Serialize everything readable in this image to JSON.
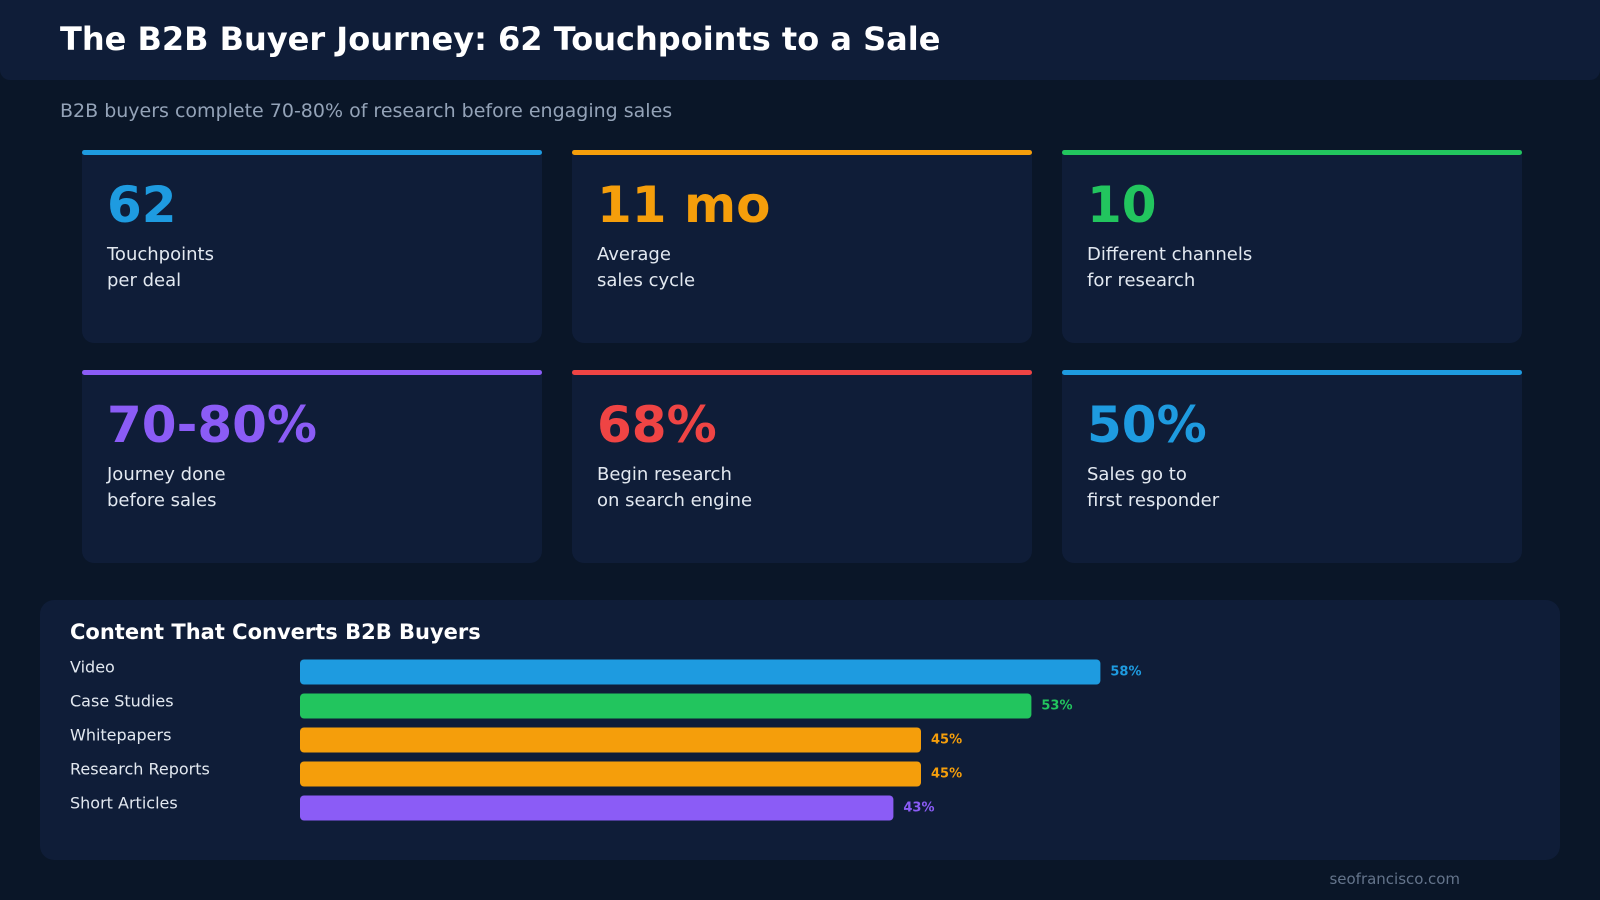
{
  "header": {
    "title": "The B2B Buyer Journey: 62 Touchpoints to a Sale",
    "subtitle": "B2B buyers complete 70-80% of research before engaging sales"
  },
  "stats": [
    {
      "value": "62",
      "label": [
        "Touchpoints",
        "per deal"
      ],
      "color": "#1e9be0"
    },
    {
      "value": "11 mo",
      "label": [
        "Average",
        "sales cycle"
      ],
      "color": "#f59e0b"
    },
    {
      "value": "10",
      "label": [
        "Different channels",
        "for research"
      ],
      "color": "#22c55e"
    },
    {
      "value": "70-80%",
      "label": [
        "Journey done",
        "before sales"
      ],
      "color": "#8b5cf6"
    },
    {
      "value": "68%",
      "label": [
        "Begin research",
        "on search engine"
      ],
      "color": "#ef4444"
    },
    {
      "value": "50%",
      "label": [
        "Sales go to",
        "first responder"
      ],
      "color": "#1e9be0"
    }
  ],
  "chart_data": {
    "type": "bar",
    "orientation": "horizontal",
    "title": "Content That Converts B2B Buyers",
    "categories": [
      "Video",
      "Case Studies",
      "Whitepapers",
      "Research Reports",
      "Short Articles"
    ],
    "values": [
      58,
      53,
      45,
      45,
      43
    ],
    "value_labels": [
      "58%",
      "53%",
      "45%",
      "45%",
      "43%"
    ],
    "colors": [
      "#1e9be0",
      "#22c55e",
      "#f59e0b",
      "#f59e0b",
      "#8b5cf6"
    ]
  },
  "footer": {
    "source": "seofrancisco.com"
  }
}
